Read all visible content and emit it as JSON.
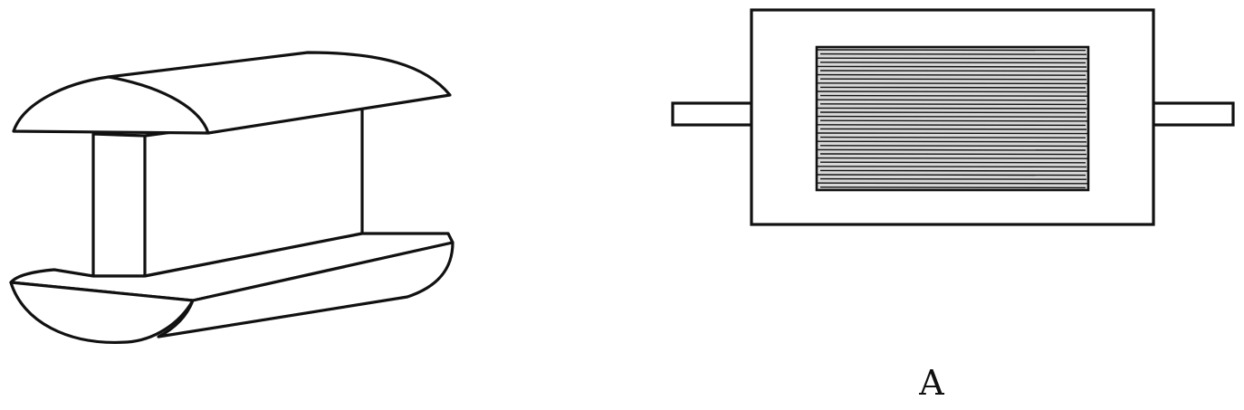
{
  "figure": {
    "label": "A",
    "ink_color": "#111111",
    "paper_color": "#ffffff"
  }
}
